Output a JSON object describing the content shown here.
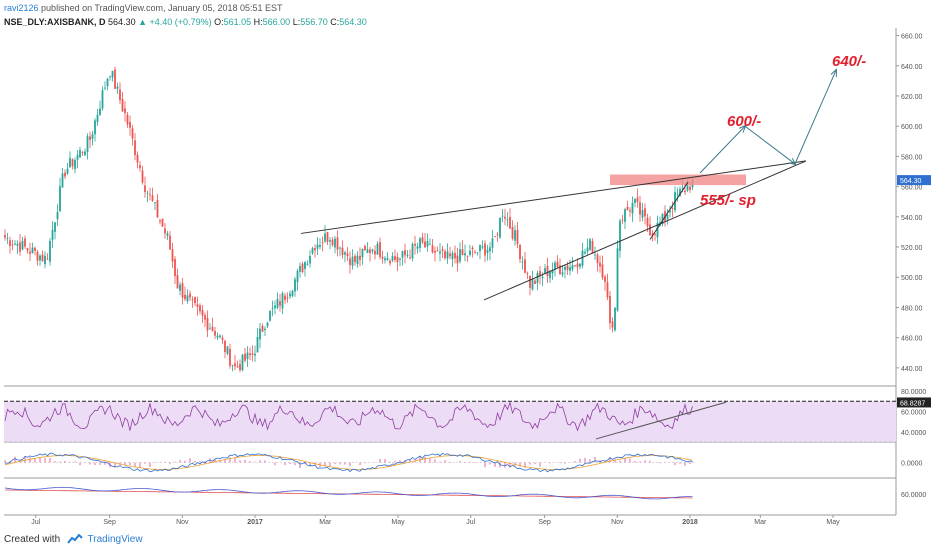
{
  "header": {
    "publisher": "ravi2126",
    "published_text": "published on TradingView.com, January 05, 2018 05:51 EST",
    "symbol": "NSE_DLY:AXISBANK, D",
    "last": "564.30",
    "change": "+4.40 (+0.79%)",
    "ohlc": {
      "open_label": "O:",
      "open": "561.05",
      "high_label": "H:",
      "high": "566.00",
      "low_label": "L:",
      "low": "556.70",
      "close_label": "C:",
      "close": "564.30"
    }
  },
  "footer": {
    "created_with": "Created with",
    "brand": "TradingView"
  },
  "colors": {
    "up": "#26a69a",
    "down": "#ef5350",
    "wedge_line": "#333333",
    "arrow": "#3b7a8a",
    "target_text": "#e0202c",
    "resistance_zone": "#f28b8b",
    "rsi_band": "#eddcf5",
    "rsi_line": "#8e3fa0",
    "macd_line": "#2e6fd0",
    "signal_line": "#f0a030",
    "hist": "#e066a0",
    "third_blue": "#4a5ad0",
    "third_red": "#e05050"
  },
  "chart_data": [
    {
      "type": "candlestick",
      "name": "price",
      "x_ticks": [
        "Jul",
        "Sep",
        "Nov",
        "2017",
        "Mar",
        "May",
        "Jul",
        "Sep",
        "Nov",
        "2018",
        "Mar",
        "May"
      ],
      "y_ticks": [
        440,
        460,
        480,
        500,
        520,
        540,
        560,
        580,
        600,
        620,
        640,
        660
      ],
      "ylim": [
        428,
        665
      ],
      "price_label": "564.30",
      "annotations": [
        {
          "text": "640/-",
          "kind": "target"
        },
        {
          "text": "600/-",
          "kind": "target"
        },
        {
          "text": "555/- sp",
          "kind": "stop"
        }
      ],
      "resistance_zone": [
        561,
        568
      ],
      "trend_points": [
        {
          "t": "2016-06",
          "c": 528
        },
        {
          "t": "2016-07-10",
          "c": 512
        },
        {
          "t": "2016-07-25",
          "c": 570
        },
        {
          "t": "2016-08-15",
          "c": 590
        },
        {
          "t": "2016-09-01",
          "c": 638
        },
        {
          "t": "2016-09-15",
          "c": 605
        },
        {
          "t": "2016-10-01",
          "c": 560
        },
        {
          "t": "2016-10-20",
          "c": 525
        },
        {
          "t": "2016-10-28",
          "c": 495
        },
        {
          "t": "2016-11-10",
          "c": 480
        },
        {
          "t": "2016-12-01",
          "c": 462
        },
        {
          "t": "2016-12-15",
          "c": 440
        },
        {
          "t": "2016-12-30",
          "c": 449
        },
        {
          "t": "2017-01-10",
          "c": 472
        },
        {
          "t": "2017-01-25",
          "c": 487
        },
        {
          "t": "2017-02-05",
          "c": 500
        },
        {
          "t": "2017-02-20",
          "c": 522
        },
        {
          "t": "2017-03-05",
          "c": 528
        },
        {
          "t": "2017-03-25",
          "c": 510
        },
        {
          "t": "2017-04-10",
          "c": 520
        },
        {
          "t": "2017-05-01",
          "c": 511
        },
        {
          "t": "2017-05-20",
          "c": 522
        },
        {
          "t": "2017-06-10",
          "c": 512
        },
        {
          "t": "2017-06-30",
          "c": 515
        },
        {
          "t": "2017-07-20",
          "c": 521
        },
        {
          "t": "2017-07-28",
          "c": 545
        },
        {
          "t": "2017-08-08",
          "c": 525
        },
        {
          "t": "2017-08-20",
          "c": 495
        },
        {
          "t": "2017-09-05",
          "c": 505
        },
        {
          "t": "2017-09-25",
          "c": 508
        },
        {
          "t": "2017-10-10",
          "c": 522
        },
        {
          "t": "2017-10-22",
          "c": 500
        },
        {
          "t": "2017-10-26",
          "c": 465
        },
        {
          "t": "2017-10-30",
          "c": 478
        },
        {
          "t": "2017-11-02",
          "c": 538
        },
        {
          "t": "2017-11-15",
          "c": 549
        },
        {
          "t": "2017-11-30",
          "c": 530
        },
        {
          "t": "2017-12-10",
          "c": 538
        },
        {
          "t": "2017-12-20",
          "c": 553
        },
        {
          "t": "2018-01-05",
          "c": 564.3
        }
      ]
    },
    {
      "type": "line",
      "name": "RSI",
      "y_ticks": [
        "40.0000",
        "60.0000",
        "80.0000"
      ],
      "last_value_label": "68.8287",
      "ylim": [
        30,
        82
      ]
    },
    {
      "type": "line",
      "name": "MACD",
      "y_ticks": [
        "0.0000"
      ]
    },
    {
      "type": "line",
      "name": "third indicator",
      "y_ticks": [
        "60.0000"
      ]
    }
  ]
}
